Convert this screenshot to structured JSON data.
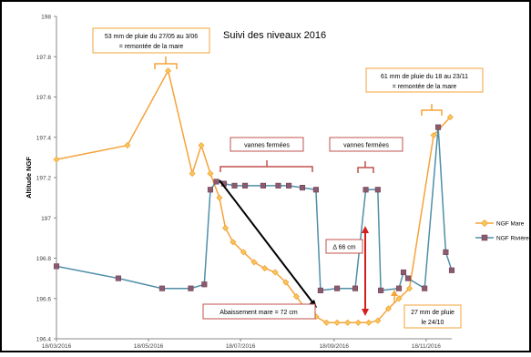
{
  "chart_data": {
    "type": "line",
    "title": "Suivi des niveaux 2016",
    "ylabel": "Altitude NGF",
    "xlabel": "",
    "ylim": [
      196.4,
      198
    ],
    "xlim": [
      "2016-03-18",
      "2016-12-05"
    ],
    "yticks": [
      "196.4",
      "196.6",
      "196.8",
      "197",
      "197.2",
      "197.4",
      "197.6",
      "197.8",
      "198"
    ],
    "xticks": [
      {
        "date": "2016-03-18",
        "label": "18/03/2016"
      },
      {
        "date": "2016-05-18",
        "label": "18/05/2016"
      },
      {
        "date": "2016-07-18",
        "label": "18/07/2016"
      },
      {
        "date": "2016-09-18",
        "label": "18/09/2016"
      },
      {
        "date": "2016-11-18",
        "label": "18/11/2016"
      }
    ],
    "legend_position": "right",
    "series": [
      {
        "name": "NGF Mare",
        "color": "#F5A33A",
        "marker": "diamond",
        "points": [
          [
            "2016-03-18",
            197.29
          ],
          [
            "2016-05-04",
            197.36
          ],
          [
            "2016-05-31",
            197.73
          ],
          [
            "2016-06-16",
            197.22
          ],
          [
            "2016-06-22",
            197.36
          ],
          [
            "2016-06-28",
            197.22
          ],
          [
            "2016-07-04",
            197.1
          ],
          [
            "2016-07-08",
            196.95
          ],
          [
            "2016-07-13",
            196.88
          ],
          [
            "2016-07-20",
            196.83
          ],
          [
            "2016-07-27",
            196.78
          ],
          [
            "2016-08-03",
            196.75
          ],
          [
            "2016-08-10",
            196.73
          ],
          [
            "2016-08-17",
            196.68
          ],
          [
            "2016-08-24",
            196.61
          ],
          [
            "2016-08-30",
            196.55
          ],
          [
            "2016-09-06",
            196.51
          ],
          [
            "2016-09-13",
            196.48
          ],
          [
            "2016-09-20",
            196.48
          ],
          [
            "2016-09-27",
            196.48
          ],
          [
            "2016-10-04",
            196.48
          ],
          [
            "2016-10-11",
            196.48
          ],
          [
            "2016-10-17",
            196.49
          ],
          [
            "2016-10-24",
            196.55
          ],
          [
            "2016-10-31",
            196.6
          ],
          [
            "2016-11-07",
            196.65
          ],
          [
            "2016-11-23",
            197.41
          ],
          [
            "2016-12-04",
            197.5
          ]
        ]
      },
      {
        "name": "NGF Rivière",
        "color": "#4F8FA8",
        "marker": "square",
        "points": [
          [
            "2016-03-18",
            196.76
          ],
          [
            "2016-04-28",
            196.7
          ],
          [
            "2016-05-27",
            196.65
          ],
          [
            "2016-06-15",
            196.65
          ],
          [
            "2016-06-24",
            196.67
          ],
          [
            "2016-06-28",
            197.14
          ],
          [
            "2016-07-02",
            197.18
          ],
          [
            "2016-07-07",
            197.17
          ],
          [
            "2016-07-14",
            197.16
          ],
          [
            "2016-07-21",
            197.16
          ],
          [
            "2016-08-02",
            197.16
          ],
          [
            "2016-08-12",
            197.16
          ],
          [
            "2016-08-19",
            197.16
          ],
          [
            "2016-08-28",
            197.15
          ],
          [
            "2016-09-06",
            197.14
          ],
          [
            "2016-09-09",
            196.64
          ],
          [
            "2016-09-20",
            196.65
          ],
          [
            "2016-10-02",
            196.65
          ],
          [
            "2016-10-09",
            197.14
          ],
          [
            "2016-10-17",
            197.14
          ],
          [
            "2016-10-19",
            196.64
          ],
          [
            "2016-10-31",
            196.65
          ],
          [
            "2016-11-03",
            196.73
          ],
          [
            "2016-11-06",
            196.7
          ],
          [
            "2016-11-17",
            196.65
          ],
          [
            "2016-11-26",
            197.45
          ],
          [
            "2016-12-01",
            196.83
          ],
          [
            "2016-12-05",
            196.74
          ]
        ]
      }
    ],
    "annotations": {
      "rain_may": {
        "line1": "53 mm de pluie du 27/05 au 3/06",
        "line2": "= remontée de la mare"
      },
      "rain_nov": {
        "line1": "61 mm de pluie du 18 au 23/11",
        "line2": "= remontée de la mare"
      },
      "gates_closed_1": "vannes fermées",
      "gates_closed_2": "vannes fermées",
      "delta": "Δ 66 cm",
      "drop": "Abaissement mare = 72 cm",
      "rain_oct": {
        "line1": "27 mm de pluie",
        "line2": "le 24/10"
      }
    },
    "grid": false
  }
}
